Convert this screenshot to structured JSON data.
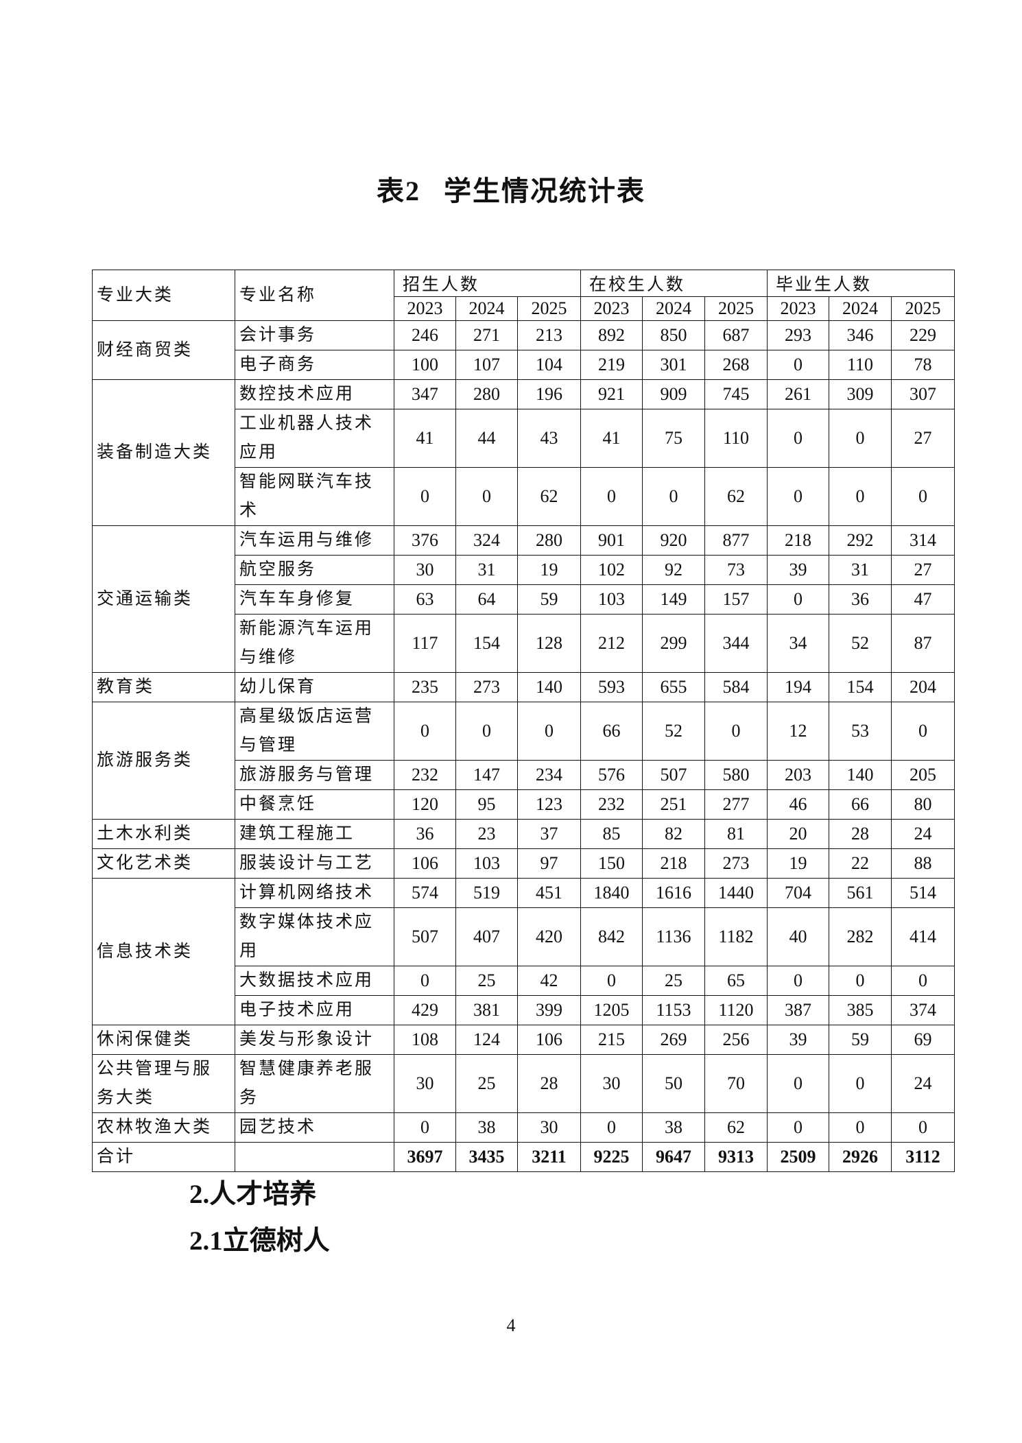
{
  "title": {
    "number": "表2",
    "text": "学生情况统计表"
  },
  "table": {
    "col_category": "专业大类",
    "col_name": "专业名称",
    "groups": [
      "招生人数",
      "在校生人数",
      "毕业生人数"
    ],
    "years": [
      "2023",
      "2024",
      "2025"
    ],
    "sections": [
      {
        "category": "财经商贸类",
        "rows": [
          {
            "name": "会计事务",
            "values": [
              246,
              271,
              213,
              892,
              850,
              687,
              293,
              346,
              229
            ]
          },
          {
            "name": "电子商务",
            "values": [
              100,
              107,
              104,
              219,
              301,
              268,
              0,
              110,
              78
            ]
          }
        ]
      },
      {
        "category": "装备制造大类",
        "rows": [
          {
            "name": "数控技术应用",
            "values": [
              347,
              280,
              196,
              921,
              909,
              745,
              261,
              309,
              307
            ]
          },
          {
            "name": "工业机器人技术应用",
            "values": [
              41,
              44,
              43,
              41,
              75,
              110,
              0,
              0,
              27
            ]
          },
          {
            "name": "智能网联汽车技术",
            "values": [
              0,
              0,
              62,
              0,
              0,
              62,
              0,
              0,
              0
            ]
          }
        ]
      },
      {
        "category": "交通运输类",
        "rows": [
          {
            "name": "汽车运用与维修",
            "values": [
              376,
              324,
              280,
              901,
              920,
              877,
              218,
              292,
              314
            ]
          },
          {
            "name": "航空服务",
            "values": [
              30,
              31,
              19,
              102,
              92,
              73,
              39,
              31,
              27
            ]
          },
          {
            "name": "汽车车身修复",
            "values": [
              63,
              64,
              59,
              103,
              149,
              157,
              0,
              36,
              47
            ]
          },
          {
            "name": "新能源汽车运用与维修",
            "values": [
              117,
              154,
              128,
              212,
              299,
              344,
              34,
              52,
              87
            ]
          }
        ]
      },
      {
        "category": "教育类",
        "rows": [
          {
            "name": "幼儿保育",
            "values": [
              235,
              273,
              140,
              593,
              655,
              584,
              194,
              154,
              204
            ]
          }
        ]
      },
      {
        "category": "旅游服务类",
        "rows": [
          {
            "name": "高星级饭店运营与管理",
            "values": [
              0,
              0,
              0,
              66,
              52,
              0,
              12,
              53,
              0
            ]
          },
          {
            "name": "旅游服务与管理",
            "values": [
              232,
              147,
              234,
              576,
              507,
              580,
              203,
              140,
              205
            ]
          },
          {
            "name": "中餐烹饪",
            "values": [
              120,
              95,
              123,
              232,
              251,
              277,
              46,
              66,
              80
            ]
          }
        ]
      },
      {
        "category": "土木水利类",
        "rows": [
          {
            "name": "建筑工程施工",
            "values": [
              36,
              23,
              37,
              85,
              82,
              81,
              20,
              28,
              24
            ]
          }
        ]
      },
      {
        "category": "文化艺术类",
        "rows": [
          {
            "name": "服装设计与工艺",
            "values": [
              106,
              103,
              97,
              150,
              218,
              273,
              19,
              22,
              88
            ]
          }
        ]
      },
      {
        "category": "信息技术类",
        "rows": [
          {
            "name": "计算机网络技术",
            "values": [
              574,
              519,
              451,
              1840,
              1616,
              1440,
              704,
              561,
              514
            ]
          },
          {
            "name": "数字媒体技术应用",
            "values": [
              507,
              407,
              420,
              842,
              1136,
              1182,
              40,
              282,
              414
            ]
          },
          {
            "name": "大数据技术应用",
            "values": [
              0,
              25,
              42,
              0,
              25,
              65,
              0,
              0,
              0
            ]
          },
          {
            "name": "电子技术应用",
            "values": [
              429,
              381,
              399,
              1205,
              1153,
              1120,
              387,
              385,
              374
            ]
          }
        ]
      },
      {
        "category": "休闲保健类",
        "rows": [
          {
            "name": "美发与形象设计",
            "values": [
              108,
              124,
              106,
              215,
              269,
              256,
              39,
              59,
              69
            ]
          }
        ]
      },
      {
        "category": "公共管理与服务大类",
        "rows": [
          {
            "name": "智慧健康养老服务",
            "values": [
              30,
              25,
              28,
              30,
              50,
              70,
              0,
              0,
              24
            ]
          }
        ]
      },
      {
        "category": "农林牧渔大类",
        "rows": [
          {
            "name": "园艺技术",
            "values": [
              0,
              38,
              30,
              0,
              38,
              62,
              0,
              0,
              0
            ]
          }
        ]
      }
    ],
    "total": {
      "label": "合计",
      "values": [
        3697,
        3435,
        3211,
        9225,
        9647,
        9313,
        2509,
        2926,
        3112
      ]
    }
  },
  "headings": [
    "2.人才培养",
    "2.1立德树人"
  ],
  "page_number": "4"
}
